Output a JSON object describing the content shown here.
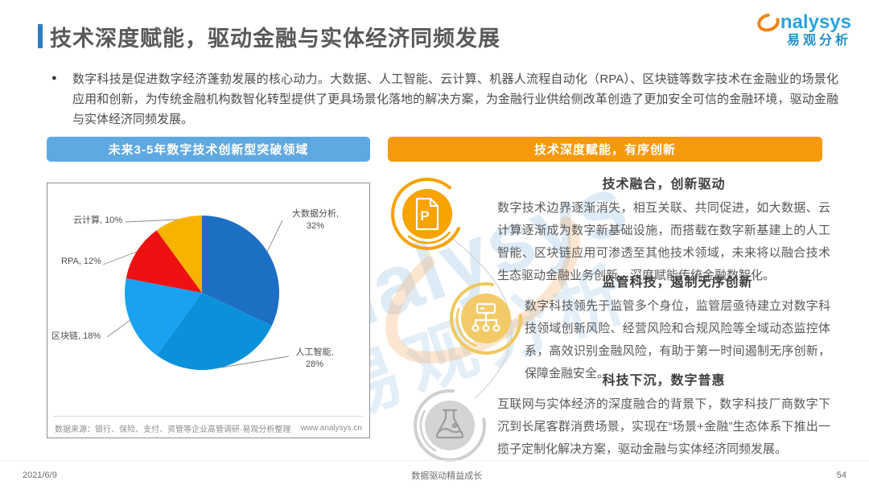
{
  "page": {
    "title": "技术深度赋能，驱动金融与实体经济同频发展",
    "intro_bullet": "数字科技是促进数字经济蓬勃发展的核心动力。大数据、人工智能、云计算、机器人流程自动化（RPA）、区块链等数字技术在金融业的场景化应用和创新，为传统金融机构数智化转型提供了更具场景化落地的解决方案，为金融行业供给侧改革创造了更加安全可信的金融环境，驱动金融与实体经济同频发展。",
    "footer": {
      "date": "2021/6/9",
      "center": "数据驱动精益成长",
      "page_number": "54"
    }
  },
  "logo": {
    "brand": "analysys",
    "brand_letters": "nalysys",
    "brand_cn": "易观分析",
    "swirl_color": "#f08519",
    "text_color": "#2aa4dd"
  },
  "left_panel": {
    "header": "未来3-5年数字技术创新型突破领域",
    "header_color": "#5fa9e2",
    "source_note": "数据来源：银行、保险、支付、资管等企业高管调研·易观分析整理",
    "website": "www.analysys.cn"
  },
  "chart_data": {
    "type": "pie",
    "title": "未来3-5年数字技术创新型突破领域",
    "labels": [
      "大数据分析",
      "人工智能",
      "区块链",
      "RPA",
      "云计算"
    ],
    "values": [
      32,
      28,
      18,
      12,
      10
    ],
    "unit": "%",
    "colors": [
      "#1d6fc4",
      "#0b90da",
      "#18a2f0",
      "#ee1111",
      "#f8b300"
    ],
    "start_angle_deg": 0,
    "direction": "clockwise",
    "legend": "none",
    "label_style": "callout-lines"
  },
  "right_panel": {
    "header": "技术深度赋能，有序创新",
    "header_color": "#f6990a",
    "sections": [
      {
        "icon": "document-p-icon",
        "icon_color": "#f7a300",
        "title": "技术融合，创新驱动",
        "body": "数字技术边界逐渐消失，相互关联、共同促进，如大数据、云计算逐渐成为数字新基础设施，而搭载在数字新基建上的人工智能、区块链应用可渗透至其他技术领域，未来将以融合技术生态驱动金融业务创新，深度赋能传统金融数智化。"
      },
      {
        "icon": "org-chart-icon",
        "icon_color": "#f2ca67",
        "title": "监管科技，遏制无序创新",
        "body": "数字科技领先于监管多个身位，监管层亟待建立对数字科技领域创新风险、经营风险和合规风险等全域动态监控体系，高效识别金融风险，有助于第一时间遏制无序创新，保障金融安全。"
      },
      {
        "icon": "flask-icon",
        "icon_color": "#d4d4d4",
        "title": "科技下沉，数字普惠",
        "body": "互联网与实体经济的深度融合的背景下，数字科技厂商数字下沉到长尾客群消费场景，实现在“场景+金融”生态体系下推出一揽子定制化解决方案，驱动金融与实体经济同频发展。"
      }
    ]
  },
  "watermark": {
    "line1": "analysys",
    "line2": "易观分析"
  }
}
